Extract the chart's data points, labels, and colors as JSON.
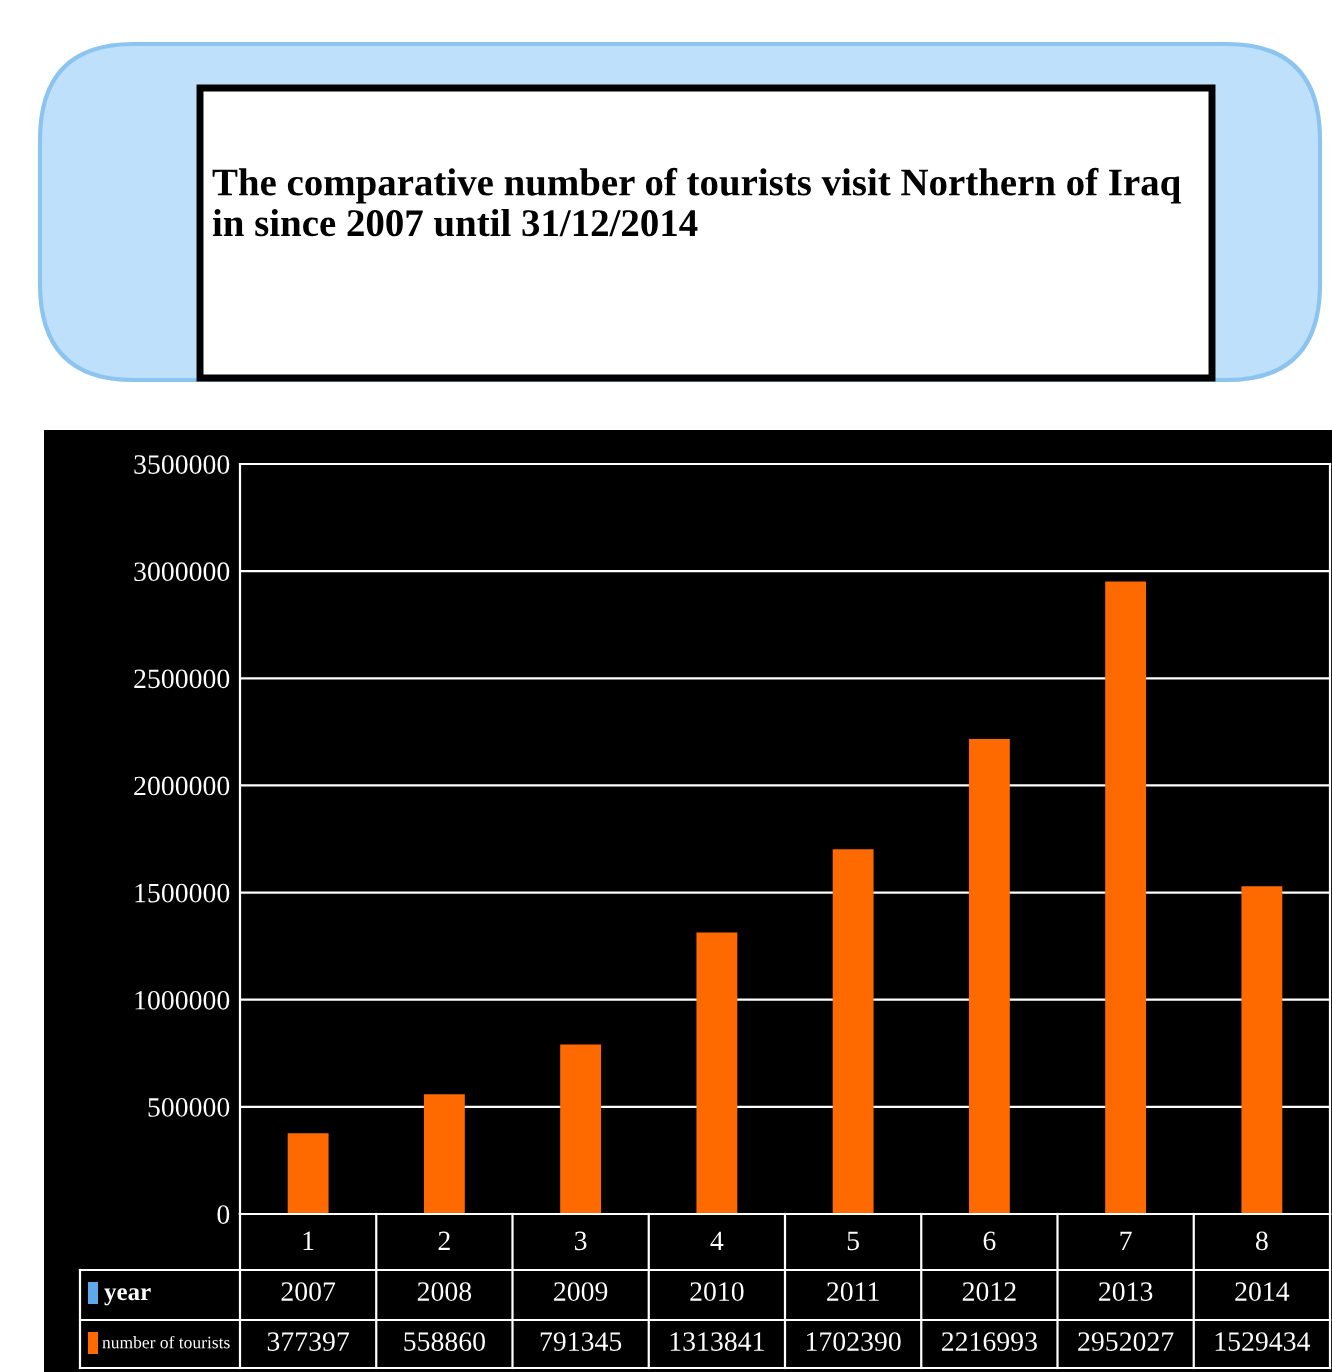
{
  "chart_data": {
    "type": "bar",
    "title": "The comparative number of tourists visit Northern of Iraq\nin since 2007 until 31/12/2014",
    "categories": [
      "1",
      "2",
      "3",
      "4",
      "5",
      "6",
      "7",
      "8"
    ],
    "series": [
      {
        "name": "number of tourists",
        "color": "#ff6a00",
        "values": [
          377397,
          558860,
          791345,
          1313841,
          1702390,
          2216993,
          2952027,
          1529434
        ]
      }
    ],
    "ylim": [
      0,
      3500000
    ],
    "yticks": [
      0,
      500000,
      1000000,
      1500000,
      2000000,
      2500000,
      3000000,
      3500000
    ],
    "grid": "y",
    "data_labels": true,
    "annotations": [
      "year",
      "2007",
      "2008",
      "2009",
      "2010",
      "2011",
      "2012",
      "2013",
      "2014"
    ]
  }
}
